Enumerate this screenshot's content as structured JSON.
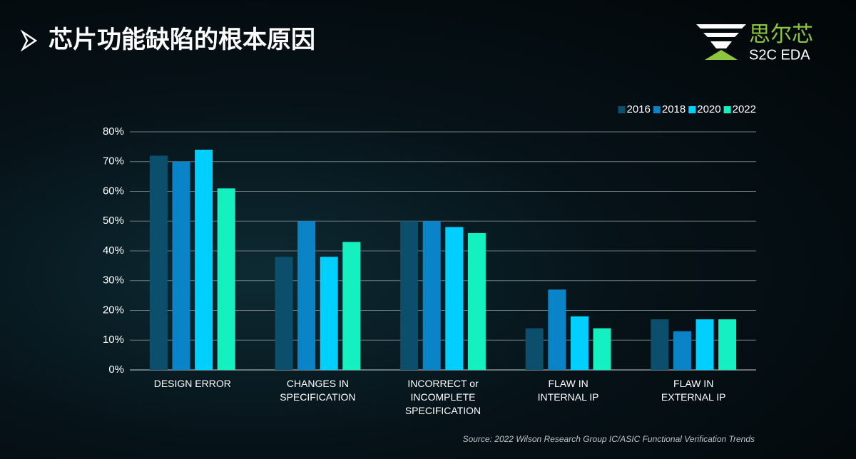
{
  "header": {
    "title": "芯片功能缺陷的根本原因",
    "logo_name": "思尔芯",
    "logo_sub": "S2C EDA"
  },
  "chart_data": {
    "type": "bar",
    "categories": [
      "DESIGN ERROR",
      "CHANGES IN\nSPECIFICATION",
      "INCORRECT or\nINCOMPLETE\nSPECIFICATION",
      "FLAW IN\nINTERNAL IP",
      "FLAW IN\nEXTERNAL IP"
    ],
    "series": [
      {
        "name": "2016",
        "color": "#0b4f6c",
        "values": [
          72,
          38,
          50,
          14,
          17
        ]
      },
      {
        "name": "2018",
        "color": "#0a84c6",
        "values": [
          70,
          50,
          50,
          27,
          13
        ]
      },
      {
        "name": "2020",
        "color": "#00cfff",
        "values": [
          74,
          38,
          48,
          18,
          17
        ]
      },
      {
        "name": "2022",
        "color": "#14f0c0",
        "values": [
          61,
          43,
          46,
          14,
          17
        ]
      }
    ],
    "ylim": [
      0,
      80
    ],
    "yticks": [
      {
        "value": 0,
        "label": "0%"
      },
      {
        "value": 10,
        "label": "10%"
      },
      {
        "value": 20,
        "label": "20%"
      },
      {
        "value": 30,
        "label": "30%"
      },
      {
        "value": 40,
        "label": "40%"
      },
      {
        "value": 50,
        "label": "50%"
      },
      {
        "value": 60,
        "label": "60%"
      },
      {
        "value": 70,
        "label": "70%"
      },
      {
        "value": 80,
        "label": "80%"
      }
    ],
    "grid": true,
    "legend": "top-right",
    "source": "Source: 2022 Wilson Research Group IC/ASIC Functional Verification Trends"
  }
}
